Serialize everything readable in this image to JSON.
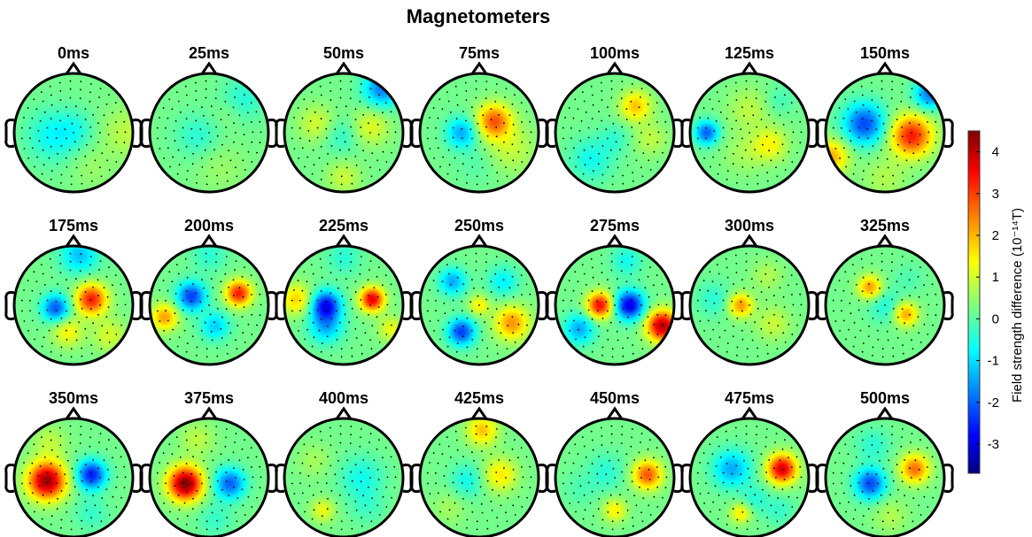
{
  "chart_data": {
    "type": "heatmap",
    "title": "Magnetometers",
    "colorbar": {
      "label": "Field strength difference (10⁻¹⁴T)",
      "ticks": [
        "4",
        "3",
        "2",
        "1",
        "0",
        "-1",
        "-2",
        "-3"
      ],
      "tick_values": [
        4,
        3,
        2,
        1,
        0,
        -1,
        -2,
        -3
      ],
      "range": [
        -3.7,
        4.5
      ],
      "colormap": "jet"
    },
    "panels": [
      {
        "label": "0ms",
        "blobs": [
          [
            -0.35,
            0.05,
            0.3,
            -0.9
          ],
          [
            0.05,
            -0.05,
            0.22,
            -0.5
          ],
          [
            0.9,
            0.0,
            0.3,
            0.6
          ],
          [
            0.3,
            0.6,
            0.25,
            0.3
          ]
        ]
      },
      {
        "label": "25ms",
        "blobs": [
          [
            -0.2,
            0.05,
            0.25,
            -0.6
          ],
          [
            0.55,
            -0.55,
            0.25,
            -0.7
          ],
          [
            0.35,
            -0.35,
            0.2,
            0.3
          ],
          [
            0.2,
            0.6,
            0.3,
            0.3
          ]
        ]
      },
      {
        "label": "50ms",
        "blobs": [
          [
            0.65,
            -0.75,
            0.22,
            -2.0
          ],
          [
            -0.45,
            -0.15,
            0.22,
            0.8
          ],
          [
            0.45,
            -0.1,
            0.22,
            0.9
          ],
          [
            -0.05,
            0.05,
            0.22,
            -0.6
          ],
          [
            0.0,
            0.75,
            0.2,
            0.7
          ]
        ]
      },
      {
        "label": "75ms",
        "blobs": [
          [
            0.25,
            -0.2,
            0.2,
            2.4
          ],
          [
            -0.3,
            0.0,
            0.18,
            -1.6
          ],
          [
            0.5,
            0.25,
            0.3,
            0.7
          ],
          [
            0.0,
            0.5,
            0.25,
            -0.3
          ]
        ]
      },
      {
        "label": "100ms",
        "blobs": [
          [
            0.35,
            -0.45,
            0.18,
            1.6
          ],
          [
            -0.4,
            0.45,
            0.25,
            -0.8
          ],
          [
            0.0,
            0.1,
            0.18,
            -0.5
          ],
          [
            0.6,
            0.1,
            0.2,
            0.6
          ]
        ]
      },
      {
        "label": "125ms",
        "blobs": [
          [
            -0.72,
            0.0,
            0.14,
            -2.2
          ],
          [
            0.35,
            0.2,
            0.2,
            1.1
          ],
          [
            0.0,
            -0.4,
            0.25,
            0.6
          ],
          [
            -0.1,
            0.35,
            0.25,
            0.4
          ],
          [
            0.5,
            -0.55,
            0.18,
            -0.4
          ]
        ]
      },
      {
        "label": "150ms",
        "blobs": [
          [
            0.45,
            0.05,
            0.24,
            3.0
          ],
          [
            -0.35,
            -0.15,
            0.24,
            -2.4
          ],
          [
            0.75,
            -0.65,
            0.18,
            -2.0
          ],
          [
            -0.9,
            0.4,
            0.2,
            1.8
          ],
          [
            0.0,
            0.75,
            0.25,
            0.5
          ]
        ]
      },
      {
        "label": "175ms",
        "blobs": [
          [
            0.3,
            -0.1,
            0.18,
            3.0
          ],
          [
            -0.3,
            0.05,
            0.16,
            -2.3
          ],
          [
            0.1,
            -0.85,
            0.22,
            -1.4
          ],
          [
            -0.1,
            0.45,
            0.18,
            1.1
          ],
          [
            0.6,
            0.5,
            0.2,
            0.8
          ]
        ]
      },
      {
        "label": "200ms",
        "blobs": [
          [
            0.5,
            -0.2,
            0.15,
            3.0
          ],
          [
            -0.3,
            -0.15,
            0.17,
            -2.5
          ],
          [
            0.1,
            0.35,
            0.17,
            -1.3
          ],
          [
            -0.75,
            0.2,
            0.16,
            1.9
          ],
          [
            0.0,
            -0.85,
            0.2,
            -0.6
          ]
        ]
      },
      {
        "label": "225ms",
        "blobs": [
          [
            0.48,
            -0.1,
            0.14,
            3.4
          ],
          [
            -0.3,
            0.0,
            0.17,
            -2.9
          ],
          [
            -0.3,
            0.35,
            0.2,
            -1.5
          ],
          [
            -0.8,
            -0.1,
            0.18,
            1.5
          ],
          [
            0.8,
            0.4,
            0.15,
            1.0
          ],
          [
            0.0,
            -0.8,
            0.2,
            -0.6
          ]
        ]
      },
      {
        "label": "250ms",
        "blobs": [
          [
            -0.3,
            0.45,
            0.16,
            -2.5
          ],
          [
            -0.45,
            -0.4,
            0.16,
            -1.6
          ],
          [
            0.55,
            0.3,
            0.2,
            2.0
          ],
          [
            0.0,
            0.0,
            0.12,
            1.2
          ],
          [
            0.4,
            -0.4,
            0.18,
            -1.0
          ]
        ]
      },
      {
        "label": "275ms",
        "blobs": [
          [
            0.25,
            0.0,
            0.17,
            -3.2
          ],
          [
            -0.25,
            0.0,
            0.15,
            3.2
          ],
          [
            0.8,
            0.35,
            0.18,
            3.8
          ],
          [
            -0.6,
            0.4,
            0.18,
            -1.6
          ],
          [
            0.2,
            -0.75,
            0.18,
            -0.8
          ]
        ]
      },
      {
        "label": "300ms",
        "blobs": [
          [
            -0.15,
            0.0,
            0.14,
            2.0
          ],
          [
            0.4,
            0.3,
            0.2,
            0.7
          ],
          [
            -0.6,
            -0.1,
            0.2,
            -0.6
          ],
          [
            0.3,
            -0.5,
            0.18,
            0.5
          ]
        ]
      },
      {
        "label": "325ms",
        "blobs": [
          [
            -0.25,
            -0.3,
            0.14,
            2.0
          ],
          [
            0.35,
            0.15,
            0.14,
            1.9
          ],
          [
            0.0,
            0.0,
            0.2,
            -0.7
          ],
          [
            0.4,
            -0.45,
            0.18,
            -0.3
          ]
        ]
      },
      {
        "label": "350ms",
        "blobs": [
          [
            -0.45,
            0.05,
            0.22,
            4.0
          ],
          [
            0.3,
            -0.05,
            0.17,
            -2.8
          ],
          [
            -0.4,
            -0.6,
            0.2,
            0.6
          ],
          [
            0.3,
            0.6,
            0.2,
            -0.5
          ]
        ]
      },
      {
        "label": "375ms",
        "blobs": [
          [
            -0.4,
            0.1,
            0.2,
            4.2
          ],
          [
            0.35,
            0.1,
            0.18,
            -2.2
          ],
          [
            -0.2,
            -0.65,
            0.2,
            0.6
          ],
          [
            0.1,
            0.7,
            0.2,
            -0.5
          ]
        ]
      },
      {
        "label": "400ms",
        "blobs": [
          [
            0.3,
            0.0,
            0.25,
            -0.8
          ],
          [
            -0.35,
            0.55,
            0.14,
            1.0
          ],
          [
            -0.5,
            -0.3,
            0.2,
            0.4
          ],
          [
            0.4,
            0.5,
            0.2,
            -0.4
          ]
        ]
      },
      {
        "label": "425ms",
        "blobs": [
          [
            0.35,
            -0.05,
            0.2,
            1.3
          ],
          [
            0.05,
            -0.8,
            0.18,
            1.6
          ],
          [
            -0.2,
            0.05,
            0.2,
            -0.8
          ],
          [
            -0.5,
            0.5,
            0.2,
            0.4
          ]
        ]
      },
      {
        "label": "450ms",
        "blobs": [
          [
            0.55,
            -0.05,
            0.17,
            2.5
          ],
          [
            -0.15,
            -0.1,
            0.22,
            -0.6
          ],
          [
            0.0,
            0.55,
            0.14,
            1.2
          ],
          [
            -0.6,
            0.2,
            0.2,
            -0.3
          ]
        ]
      },
      {
        "label": "475ms",
        "blobs": [
          [
            0.55,
            -0.15,
            0.17,
            3.5
          ],
          [
            -0.3,
            -0.15,
            0.22,
            -1.6
          ],
          [
            -0.15,
            0.6,
            0.12,
            1.3
          ],
          [
            0.1,
            0.35,
            0.16,
            -0.6
          ],
          [
            0.5,
            0.55,
            0.18,
            -0.5
          ]
        ]
      },
      {
        "label": "500ms",
        "blobs": [
          [
            -0.25,
            0.1,
            0.18,
            -2.4
          ],
          [
            0.5,
            -0.15,
            0.17,
            2.3
          ],
          [
            -0.2,
            -0.55,
            0.2,
            -0.6
          ],
          [
            0.1,
            0.65,
            0.2,
            0.5
          ]
        ]
      }
    ]
  }
}
